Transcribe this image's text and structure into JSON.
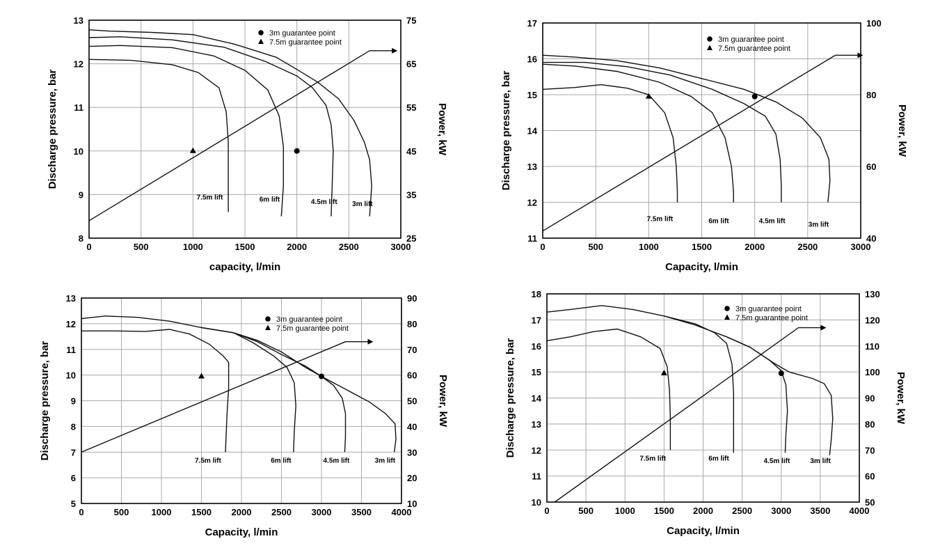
{
  "chart_data": [
    {
      "type": "line",
      "xlabel": "capacity, l/min",
      "ylabel": "Discharge pressure, bar",
      "y2label": "Power, kW",
      "xlim": [
        0,
        3000
      ],
      "ylim": [
        8,
        13
      ],
      "y2lim": [
        25,
        75
      ],
      "xticks": [
        "0",
        "500",
        "1000",
        "1500",
        "2000",
        "2500",
        "3000"
      ],
      "yticks": [
        "8",
        "9",
        "10",
        "11",
        "12",
        "13"
      ],
      "y2ticks": [
        "25",
        "35",
        "45",
        "55",
        "65",
        "75"
      ],
      "grid": true,
      "legend": [
        {
          "marker": "circle",
          "label": "3m guarantee point"
        },
        {
          "marker": "triangle",
          "label": "7.5m guarantee point"
        }
      ],
      "series": [
        {
          "name": "3m lift",
          "points": [
            [
              0,
              12.78
            ],
            [
              200,
              12.75
            ],
            [
              600,
              12.72
            ],
            [
              1000,
              12.67
            ],
            [
              1400,
              12.45
            ],
            [
              1800,
              12.15
            ],
            [
              2000,
              11.87
            ],
            [
              2200,
              11.58
            ],
            [
              2400,
              11.2
            ],
            [
              2550,
              10.7
            ],
            [
              2650,
              10.2
            ],
            [
              2700,
              9.8
            ],
            [
              2720,
              9.2
            ],
            [
              2700,
              8.5
            ]
          ]
        },
        {
          "name": "4.5m lift",
          "points": [
            [
              0,
              12.6
            ],
            [
              300,
              12.62
            ],
            [
              800,
              12.55
            ],
            [
              1300,
              12.38
            ],
            [
              1700,
              12.05
            ],
            [
              2000,
              11.72
            ],
            [
              2150,
              11.45
            ],
            [
              2280,
              11.05
            ],
            [
              2330,
              10.6
            ],
            [
              2350,
              10.0
            ],
            [
              2340,
              9.2
            ],
            [
              2330,
              8.5
            ]
          ]
        },
        {
          "name": "6m lift",
          "points": [
            [
              0,
              12.4
            ],
            [
              300,
              12.42
            ],
            [
              800,
              12.37
            ],
            [
              1200,
              12.18
            ],
            [
              1500,
              11.85
            ],
            [
              1720,
              11.4
            ],
            [
              1830,
              10.8
            ],
            [
              1870,
              10.1
            ],
            [
              1870,
              9.2
            ],
            [
              1850,
              8.5
            ]
          ]
        },
        {
          "name": "7.5m lift",
          "points": [
            [
              0,
              12.1
            ],
            [
              400,
              12.08
            ],
            [
              800,
              11.98
            ],
            [
              1050,
              11.8
            ],
            [
              1250,
              11.45
            ],
            [
              1320,
              10.9
            ],
            [
              1340,
              10.2
            ],
            [
              1340,
              9.3
            ],
            [
              1340,
              8.6
            ]
          ]
        }
      ],
      "power_line": {
        "x": [
          0,
          2700
        ],
        "y2": [
          29,
          68
        ]
      },
      "guarantee_points": [
        {
          "marker": "circle",
          "x": 2000,
          "y": 10.0
        },
        {
          "marker": "triangle",
          "x": 1000,
          "y": 10.0
        }
      ]
    },
    {
      "type": "line",
      "xlabel": "Capacity, l/min",
      "ylabel": "Discharge pressure, bar",
      "y2label": "Power, kW",
      "xlim": [
        0,
        3000
      ],
      "ylim": [
        11,
        17
      ],
      "y2lim": [
        40,
        100
      ],
      "xticks": [
        "0",
        "500",
        "1000",
        "1500",
        "2000",
        "2500",
        "3000"
      ],
      "yticks": [
        "11",
        "12",
        "13",
        "14",
        "15",
        "16",
        "17"
      ],
      "y2ticks": [
        "40",
        "60",
        "80",
        "100"
      ],
      "grid": true,
      "legend": [
        {
          "marker": "circle",
          "label": "3m guarantee point"
        },
        {
          "marker": "triangle",
          "label": "7.5m guarantee point"
        }
      ],
      "series": [
        {
          "name": "3m lift",
          "points": [
            [
              0,
              16.1
            ],
            [
              300,
              16.05
            ],
            [
              700,
              15.95
            ],
            [
              1100,
              15.75
            ],
            [
              1500,
              15.45
            ],
            [
              1900,
              15.15
            ],
            [
              2200,
              14.8
            ],
            [
              2450,
              14.35
            ],
            [
              2620,
              13.8
            ],
            [
              2700,
              13.2
            ],
            [
              2710,
              12.6
            ],
            [
              2690,
              12.0
            ]
          ]
        },
        {
          "name": "4.5m lift",
          "points": [
            [
              0,
              15.9
            ],
            [
              400,
              15.9
            ],
            [
              800,
              15.78
            ],
            [
              1200,
              15.55
            ],
            [
              1600,
              15.15
            ],
            [
              1900,
              14.75
            ],
            [
              2100,
              14.4
            ],
            [
              2200,
              13.9
            ],
            [
              2240,
              13.2
            ],
            [
              2250,
              12.5
            ],
            [
              2250,
              12.0
            ]
          ]
        },
        {
          "name": "6m lift",
          "points": [
            [
              0,
              15.85
            ],
            [
              300,
              15.8
            ],
            [
              700,
              15.65
            ],
            [
              1100,
              15.35
            ],
            [
              1400,
              14.95
            ],
            [
              1600,
              14.5
            ],
            [
              1720,
              13.8
            ],
            [
              1780,
              13.0
            ],
            [
              1800,
              12.3
            ],
            [
              1800,
              12.0
            ]
          ]
        },
        {
          "name": "7.5m lift",
          "points": [
            [
              0,
              15.15
            ],
            [
              300,
              15.2
            ],
            [
              550,
              15.28
            ],
            [
              800,
              15.18
            ],
            [
              1000,
              15.0
            ],
            [
              1150,
              14.5
            ],
            [
              1230,
              13.8
            ],
            [
              1260,
              13.0
            ],
            [
              1270,
              12.3
            ],
            [
              1270,
              12.0
            ]
          ]
        }
      ],
      "power_line": {
        "x": [
          0,
          2760
        ],
        "y2": [
          42,
          91
        ]
      },
      "guarantee_points": [
        {
          "marker": "circle",
          "x": 2000,
          "y": 14.95
        },
        {
          "marker": "triangle",
          "x": 1000,
          "y": 14.95
        }
      ]
    },
    {
      "type": "line",
      "xlabel": "Capacity, l/min",
      "ylabel": "Discharge pressure, bar",
      "y2label": "Power, kW",
      "xlim": [
        0,
        4000
      ],
      "ylim": [
        5,
        13
      ],
      "y2lim": [
        10,
        90
      ],
      "xticks": [
        "0",
        "500",
        "1000",
        "1500",
        "2000",
        "2500",
        "3000",
        "3500",
        "4000"
      ],
      "yticks": [
        "5",
        "6",
        "7",
        "8",
        "9",
        "10",
        "11",
        "12",
        "13"
      ],
      "y2ticks": [
        "10",
        "20",
        "30",
        "40",
        "50",
        "60",
        "70",
        "80",
        "90"
      ],
      "grid": true,
      "legend": [
        {
          "marker": "circle",
          "label": "3m guarantee point"
        },
        {
          "marker": "triangle",
          "label": "7.5m guarantee point"
        }
      ],
      "series": [
        {
          "name": "3m lift",
          "points": [
            [
              0,
              12.2
            ],
            [
              300,
              12.3
            ],
            [
              700,
              12.25
            ],
            [
              1100,
              12.1
            ],
            [
              1500,
              11.85
            ],
            [
              1900,
              11.65
            ],
            [
              2200,
              11.35
            ],
            [
              2500,
              10.9
            ],
            [
              2800,
              10.3
            ],
            [
              3000,
              9.95
            ],
            [
              3300,
              9.45
            ],
            [
              3600,
              8.95
            ],
            [
              3800,
              8.5
            ],
            [
              3920,
              8.1
            ],
            [
              3930,
              7.5
            ],
            [
              3910,
              7.0
            ]
          ]
        },
        {
          "name": "4.5m lift",
          "points": [
            [
              1500,
              11.85
            ],
            [
              1900,
              11.65
            ],
            [
              2200,
              11.3
            ],
            [
              2500,
              10.8
            ],
            [
              2800,
              10.35
            ],
            [
              3000,
              9.95
            ],
            [
              3150,
              9.6
            ],
            [
              3260,
              9.1
            ],
            [
              3300,
              8.5
            ],
            [
              3300,
              7.6
            ],
            [
              3290,
              7.0
            ]
          ]
        },
        {
          "name": "6m lift",
          "points": [
            [
              1500,
              11.85
            ],
            [
              1900,
              11.65
            ],
            [
              2150,
              11.25
            ],
            [
              2400,
              10.75
            ],
            [
              2570,
              10.3
            ],
            [
              2660,
              9.7
            ],
            [
              2680,
              8.8
            ],
            [
              2660,
              7.8
            ],
            [
              2650,
              7.0
            ]
          ]
        },
        {
          "name": "7.5m lift",
          "points": [
            [
              0,
              11.72
            ],
            [
              400,
              11.72
            ],
            [
              800,
              11.7
            ],
            [
              1100,
              11.78
            ],
            [
              1350,
              11.6
            ],
            [
              1600,
              11.2
            ],
            [
              1770,
              10.75
            ],
            [
              1840,
              10.5
            ],
            [
              1840,
              9.5
            ],
            [
              1820,
              8.5
            ],
            [
              1800,
              7.0
            ]
          ]
        }
      ],
      "power_line": {
        "x": [
          0,
          3300
        ],
        "y2": [
          30,
          73
        ]
      },
      "guarantee_points": [
        {
          "marker": "circle",
          "x": 3000,
          "y": 9.95
        },
        {
          "marker": "triangle",
          "x": 1500,
          "y": 9.95
        }
      ]
    },
    {
      "type": "line",
      "xlabel": "Capacity, l/min",
      "ylabel": "Discharge pressure, bar",
      "y2label": "Power, kW",
      "xlim": [
        0,
        4000
      ],
      "ylim": [
        10,
        18
      ],
      "y2lim": [
        50,
        130
      ],
      "xticks": [
        "0",
        "500",
        "1000",
        "1500",
        "2000",
        "2500",
        "3000",
        "3500",
        "4000"
      ],
      "yticks": [
        "10",
        "11",
        "12",
        "13",
        "14",
        "15",
        "16",
        "17",
        "18"
      ],
      "y2ticks": [
        "50",
        "60",
        "70",
        "80",
        "90",
        "100",
        "110",
        "120",
        "130"
      ],
      "grid": true,
      "legend": [
        {
          "marker": "circle",
          "label": "3m guarantee point"
        },
        {
          "marker": "triangle",
          "label": "7.5m guarantee point"
        }
      ],
      "series": [
        {
          "name": "3m lift",
          "points": [
            [
              0,
              17.3
            ],
            [
              300,
              17.4
            ],
            [
              700,
              17.55
            ],
            [
              1100,
              17.4
            ],
            [
              1500,
              17.15
            ],
            [
              1900,
              16.8
            ],
            [
              2300,
              16.35
            ],
            [
              2600,
              15.95
            ],
            [
              2900,
              15.35
            ],
            [
              3100,
              15.0
            ],
            [
              3400,
              14.75
            ],
            [
              3550,
              14.55
            ],
            [
              3640,
              14.1
            ],
            [
              3660,
              13.2
            ],
            [
              3640,
              12.4
            ],
            [
              3620,
              11.8
            ]
          ]
        },
        {
          "name": "4.5m lift",
          "points": [
            [
              2300,
              16.35
            ],
            [
              2600,
              15.95
            ],
            [
              2850,
              15.45
            ],
            [
              3000,
              15.05
            ],
            [
              3060,
              14.5
            ],
            [
              3080,
              13.5
            ],
            [
              3060,
              12.6
            ],
            [
              3050,
              11.9
            ]
          ]
        },
        {
          "name": "6m lift",
          "points": [
            [
              1500,
              17.15
            ],
            [
              1900,
              16.85
            ],
            [
              2150,
              16.5
            ],
            [
              2300,
              16.1
            ],
            [
              2370,
              15.3
            ],
            [
              2390,
              14.2
            ],
            [
              2390,
              13.0
            ],
            [
              2390,
              11.9
            ]
          ]
        },
        {
          "name": "7.5m lift",
          "points": [
            [
              0,
              16.2
            ],
            [
              300,
              16.35
            ],
            [
              600,
              16.55
            ],
            [
              900,
              16.65
            ],
            [
              1200,
              16.35
            ],
            [
              1450,
              15.9
            ],
            [
              1540,
              15.2
            ],
            [
              1570,
              14.3
            ],
            [
              1580,
              13.2
            ],
            [
              1580,
              12.0
            ]
          ]
        }
      ],
      "power_line": {
        "x": [
          100,
          3220
        ],
        "y2": [
          50,
          117
        ]
      },
      "guarantee_points": [
        {
          "marker": "circle",
          "x": 3000,
          "y": 14.95
        },
        {
          "marker": "triangle",
          "x": 1500,
          "y": 14.95
        }
      ]
    }
  ]
}
